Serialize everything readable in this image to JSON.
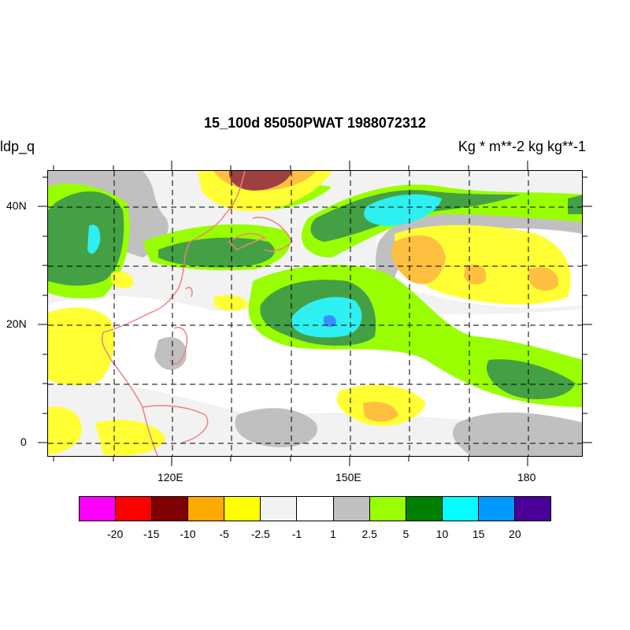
{
  "header": {
    "title": "15_100d 85050PWAT  1988072312",
    "left_label": "ldp_q",
    "right_label": "Kg  * m**-2 kg kg**-1"
  },
  "map": {
    "lon_labels": [
      "120E",
      "150E",
      "180"
    ],
    "lat_labels": [
      "40N",
      "20N",
      "0"
    ]
  },
  "colorbar": {
    "colors": [
      "#ff00ff",
      "#ff0000",
      "#800000",
      "#ffaa00",
      "#ffff00",
      "#f2f2f2",
      "#ffffff",
      "#c0c0c0",
      "#99ff00",
      "#008000",
      "#00ffff",
      "#0099ff",
      "#4b0099"
    ],
    "labels": [
      "-20",
      "-15",
      "-10",
      "-5",
      "-2.5",
      "-1",
      "1",
      "2.5",
      "5",
      "10",
      "15",
      "20"
    ]
  }
}
